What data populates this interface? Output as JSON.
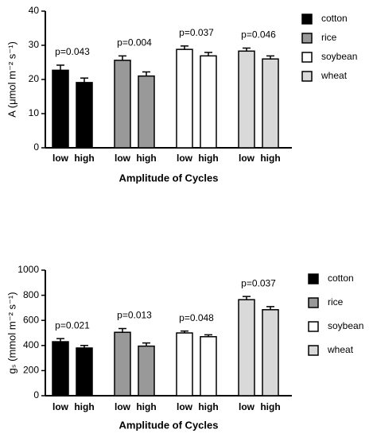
{
  "chart_data": [
    {
      "type": "bar",
      "ylabel": "A (μmol m⁻² s⁻¹)",
      "xlabel": "Amplitude of Cycles",
      "categories": [
        "low",
        "high"
      ],
      "series": [
        {
          "name": "cotton",
          "color": "#000000",
          "values": [
            22.7,
            19.1
          ],
          "errors": [
            1.5,
            1.3
          ]
        },
        {
          "name": "rice",
          "color": "#999999",
          "values": [
            25.6,
            21.0
          ],
          "errors": [
            1.3,
            1.2
          ]
        },
        {
          "name": "soybean",
          "color": "#ffffff",
          "values": [
            28.8,
            26.9
          ],
          "errors": [
            1.0,
            1.0
          ]
        },
        {
          "name": "wheat",
          "color": "#d9d9d9",
          "values": [
            28.3,
            26.0
          ],
          "errors": [
            0.9,
            0.9
          ]
        }
      ],
      "annotations": [
        "p=0.043",
        "p=0.004",
        "p=0.037",
        "p=0.046"
      ],
      "ylim": [
        0,
        40
      ],
      "yticks": [
        0,
        10,
        20,
        30,
        40
      ],
      "legend": "right"
    },
    {
      "type": "bar",
      "ylabel": "gₛ (mmol m⁻² s⁻¹)",
      "xlabel": "Amplitude of Cycles",
      "categories": [
        "low",
        "high"
      ],
      "series": [
        {
          "name": "cotton",
          "color": "#000000",
          "values": [
            430,
            380
          ],
          "errors": [
            25,
            20
          ]
        },
        {
          "name": "rice",
          "color": "#999999",
          "values": [
            505,
            395
          ],
          "errors": [
            30,
            25
          ]
        },
        {
          "name": "soybean",
          "color": "#ffffff",
          "values": [
            500,
            470
          ],
          "errors": [
            15,
            15
          ]
        },
        {
          "name": "wheat",
          "color": "#d9d9d9",
          "values": [
            765,
            685
          ],
          "errors": [
            25,
            25
          ]
        }
      ],
      "annotations": [
        "p=0.021",
        "p=0.013",
        "p=0.048",
        "p=0.037"
      ],
      "ylim": [
        0,
        1000
      ],
      "yticks": [
        0,
        200,
        400,
        600,
        800,
        1000
      ],
      "legend": "right"
    }
  ]
}
